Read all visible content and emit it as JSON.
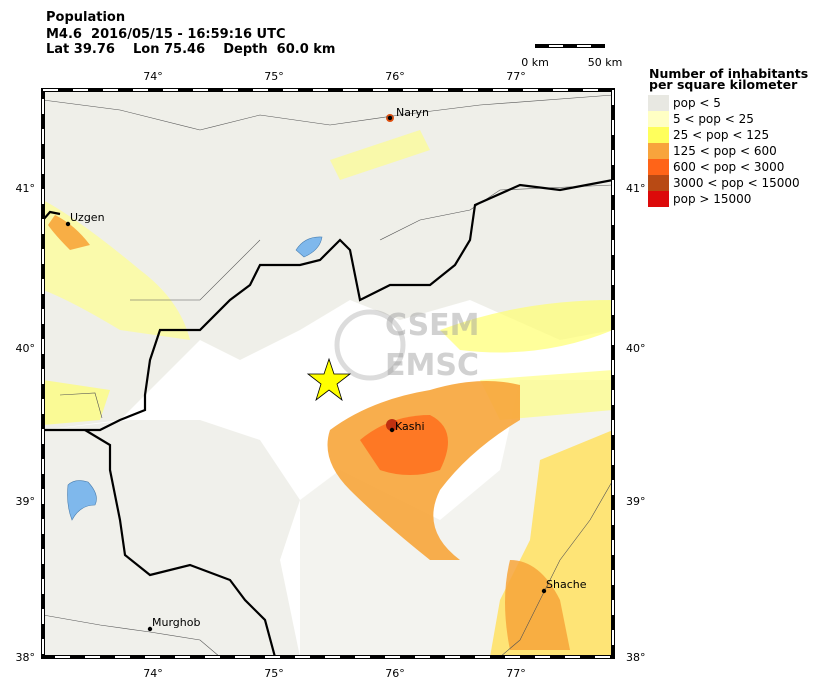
{
  "header": {
    "title": "Population",
    "event": "M4.6  2016/05/15 - 16:59:16 UTC",
    "location": "Lat 39.76    Lon 75.46    Depth  60.0 km"
  },
  "scale_bar": {
    "start": "0 km",
    "end": "50 km"
  },
  "map": {
    "lon_labels": [
      "74°",
      "75°",
      "76°",
      "77°"
    ],
    "lat_labels": [
      "41°",
      "40°",
      "39°",
      "38°"
    ],
    "cities": [
      "Naryn",
      "Uzgen",
      "Kashi",
      "Shache",
      "Murghob"
    ],
    "watermark": [
      "CSEM",
      "EMSC"
    ]
  },
  "legend": {
    "title": [
      "Number of inhabitants",
      "per square kilometer"
    ],
    "items": [
      {
        "label": "pop < 5",
        "color": "#e8e8e2"
      },
      {
        "label": "5 < pop < 25",
        "color": "#ffffc4"
      },
      {
        "label": "25 < pop < 125",
        "color": "#ffff5c"
      },
      {
        "label": "125 < pop < 600",
        "color": "#f8a43c"
      },
      {
        "label": "600 < pop < 3000",
        "color": "#ff6418"
      },
      {
        "label": "3000 < pop < 15000",
        "color": "#b84a14"
      },
      {
        "label": "pop > 15000",
        "color": "#dc0a0a"
      }
    ]
  }
}
